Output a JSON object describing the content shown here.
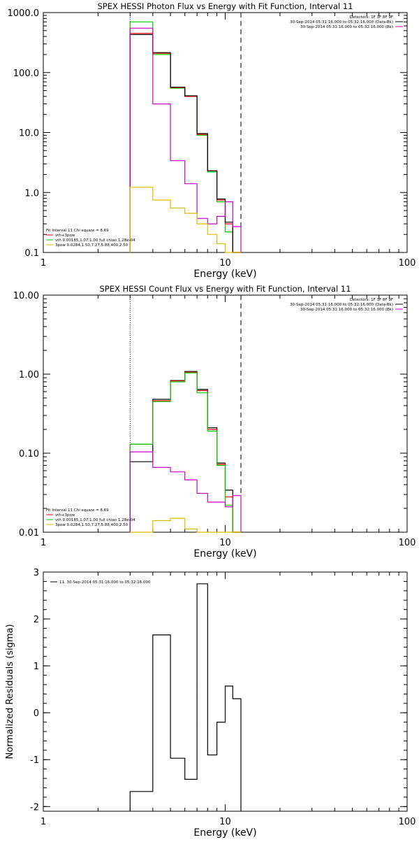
{
  "colors": {
    "total": "#000000",
    "sum": "#ff0000",
    "vth": "#00cc00",
    "3pow": "#ddbb00",
    "bkg": "#cc00cc",
    "frame": "#000000"
  },
  "chart_data": [
    {
      "type": "line",
      "title": "SPEX HESSI Photon Flux vs Energy with Fit Function, Interval 11",
      "xlabel": "Energy (keV)",
      "ylabel": "",
      "xscale": "log",
      "yscale": "log",
      "xlim": [
        1,
        100
      ],
      "ylim": [
        0.1,
        1000
      ],
      "xticks": [
        {
          "v": 1,
          "t": "1"
        },
        {
          "v": 10,
          "t": "10"
        },
        {
          "v": 100,
          "t": "100"
        }
      ],
      "yticks": [
        {
          "v": 0.1,
          "t": "0.1"
        },
        {
          "v": 1,
          "t": "1.0"
        },
        {
          "v": 10,
          "t": "10.0"
        },
        {
          "v": 100,
          "t": "100.0"
        },
        {
          "v": 1000,
          "t": "1000.0"
        }
      ],
      "vlines": [
        {
          "x": 3,
          "style": "dotted"
        },
        {
          "x": 12.2,
          "style": "dashed"
        }
      ],
      "legend_top": [
        "Detectors: 1F 3F 8F 9F",
        "30-Sep-2014 05:31:16.000 to 05:32:16.000 (Data-Bk)",
        "30-Sep-2014 05:31:16.000 to 05:32:16.000 (Bk)"
      ],
      "legend_top_colors": [
        "none",
        "total",
        "bkg"
      ],
      "legend_bottom": [
        "Fit Interval 11    Chi-square = 8.69",
        "vth+3pow",
        "vth 0.00185,1.07,1.00  full chian 1.28e-04",
        "3pow 0.0284,1.50,7.27,5.88,400,2.50"
      ],
      "legend_bottom_colors": [
        "none",
        "sum",
        "vth",
        "3pow"
      ],
      "bin_edges": [
        3.0,
        4.0,
        5.0,
        6.0,
        7.0,
        8.0,
        9.0,
        10.0,
        11.0,
        12.2
      ],
      "series": [
        {
          "name": "vth",
          "color": "vth",
          "values": [
            700,
            200,
            55,
            40,
            9,
            2.2,
            0.7,
            0.22,
            0
          ]
        },
        {
          "name": "vth+3pow",
          "color": "sum",
          "values": [
            450,
            210,
            56,
            40,
            9.3,
            2.3,
            0.75,
            0.3,
            0
          ]
        },
        {
          "name": "Data-Bk",
          "color": "total",
          "values": [
            430,
            215,
            57,
            41,
            9.6,
            2.3,
            0.78,
            0.32,
            0.1
          ]
        },
        {
          "name": "Bk",
          "color": "bkg",
          "values": [
            550,
            30,
            3.4,
            1.4,
            0.37,
            0.3,
            0.4,
            0.7,
            0.27
          ]
        },
        {
          "name": "3pow",
          "color": "3pow",
          "values": [
            1.22,
            0.75,
            0.55,
            0.45,
            0.3,
            0.2,
            0.14,
            0,
            0
          ]
        }
      ]
    },
    {
      "type": "line",
      "title": "SPEX HESSI Count Flux vs Energy with Fit Function, Interval 11",
      "xlabel": "Energy (keV)",
      "ylabel": "",
      "xscale": "log",
      "yscale": "log",
      "xlim": [
        1,
        100
      ],
      "ylim": [
        0.01,
        10
      ],
      "xticks": [
        {
          "v": 1,
          "t": "1"
        },
        {
          "v": 10,
          "t": "10"
        },
        {
          "v": 100,
          "t": "100"
        }
      ],
      "yticks": [
        {
          "v": 0.01,
          "t": "0.01"
        },
        {
          "v": 0.1,
          "t": "0.10"
        },
        {
          "v": 1,
          "t": "1.00"
        },
        {
          "v": 10,
          "t": "10.00"
        }
      ],
      "vlines": [
        {
          "x": 3,
          "style": "dotted"
        },
        {
          "x": 12.2,
          "style": "dashed"
        }
      ],
      "legend_top": [
        "Detectors: 1F 3F 8F 9F",
        "30-Sep-2014 05:31:16.000 to 05:32:16.000 (Data-Bk)",
        "30-Sep-2014 05:31:16.000 to 05:32:16.000 (Bk)"
      ],
      "legend_top_colors": [
        "none",
        "total",
        "bkg"
      ],
      "legend_bottom": [
        "Fit Interval 11    Chi-square = 8.69",
        "vth+3pow",
        "vth 0.00185,1.07,1.00  full chian 1.28e-04",
        "3pow 0.0284,1.50,7.27,5.88,400,2.50"
      ],
      "legend_bottom_colors": [
        "none",
        "sum",
        "vth",
        "3pow"
      ],
      "bin_edges": [
        3.0,
        4.0,
        5.0,
        6.0,
        7.0,
        8.0,
        9.0,
        10.0,
        11.0,
        12.2
      ],
      "series": [
        {
          "name": "Data-Bk",
          "color": "total",
          "values": [
            0.078,
            0.48,
            0.83,
            1.08,
            0.64,
            0.21,
            0.075,
            0.034,
            0
          ]
        },
        {
          "name": "vth+3pow",
          "color": "sum",
          "values": [
            0.13,
            0.46,
            0.82,
            1.06,
            0.62,
            0.2,
            0.072,
            0.028,
            0
          ]
        },
        {
          "name": "vth",
          "color": "vth",
          "values": [
            0.13,
            0.45,
            0.8,
            1.04,
            0.58,
            0.19,
            0.07,
            0.022,
            0
          ]
        },
        {
          "name": "Bk",
          "color": "bkg",
          "values": [
            0.104,
            0.066,
            0.058,
            0.046,
            0.031,
            0.024,
            0.024,
            0.021,
            0.029
          ]
        },
        {
          "name": "3pow",
          "color": "3pow",
          "values": [
            0.0,
            0.014,
            0.015,
            0.011,
            0.0,
            0,
            0,
            0,
            0
          ]
        }
      ]
    },
    {
      "type": "line",
      "title": "",
      "xlabel": "Energy (keV)",
      "ylabel": "Normalized Residuals (sigma)",
      "xscale": "log",
      "yscale": "linear",
      "xlim": [
        1,
        100
      ],
      "ylim": [
        -2.1,
        3
      ],
      "xticks": [
        {
          "v": 1,
          "t": "1"
        },
        {
          "v": 10,
          "t": "10"
        },
        {
          "v": 100,
          "t": "100"
        }
      ],
      "yticks": [
        {
          "v": -2,
          "t": "-2"
        },
        {
          "v": -1,
          "t": "-1"
        },
        {
          "v": 0,
          "t": "0"
        },
        {
          "v": 1,
          "t": "1"
        },
        {
          "v": 2,
          "t": "2"
        },
        {
          "v": 3,
          "t": "3"
        }
      ],
      "legend_top_left": "11. 30-Sep-2014 05:31:16.000 to 05:32:16.000",
      "bin_edges": [
        3.0,
        4.0,
        5.0,
        6.0,
        7.0,
        8.0,
        9.0,
        10.0,
        11.0,
        12.2
      ],
      "series": [
        {
          "name": "",
          "color": "total",
          "values": [
            -1.68,
            1.66,
            -0.97,
            -1.42,
            2.75,
            -0.9,
            -0.2,
            0.57,
            0.3
          ]
        }
      ]
    }
  ]
}
